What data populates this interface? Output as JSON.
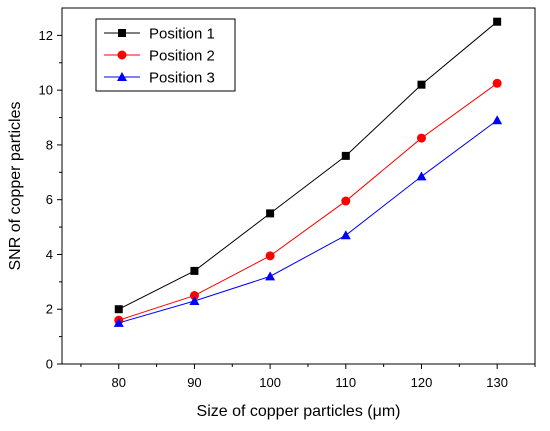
{
  "chart_data": {
    "type": "line",
    "title": "",
    "xlabel": "Size of copper particles  (μm)",
    "ylabel": "SNR of copper particles",
    "x": [
      80,
      90,
      100,
      110,
      120,
      130
    ],
    "xlim": [
      72.5,
      135
    ],
    "ylim": [
      0,
      13
    ],
    "xticks": [
      80,
      90,
      100,
      110,
      120,
      130
    ],
    "yticks": [
      0,
      2,
      4,
      6,
      8,
      10,
      12
    ],
    "grid": false,
    "legend_position": "top-left",
    "series": [
      {
        "name": "Position 1",
        "color": "#000000",
        "marker": "square",
        "values": [
          2.0,
          3.4,
          5.5,
          7.6,
          10.2,
          12.5
        ]
      },
      {
        "name": "Position 2",
        "color": "#ff0000",
        "marker": "circle",
        "values": [
          1.6,
          2.5,
          3.95,
          5.95,
          8.25,
          10.25
        ]
      },
      {
        "name": "Position 3",
        "color": "#0000ff",
        "marker": "triangle",
        "values": [
          1.5,
          2.3,
          3.2,
          4.7,
          6.85,
          8.9
        ]
      }
    ]
  }
}
